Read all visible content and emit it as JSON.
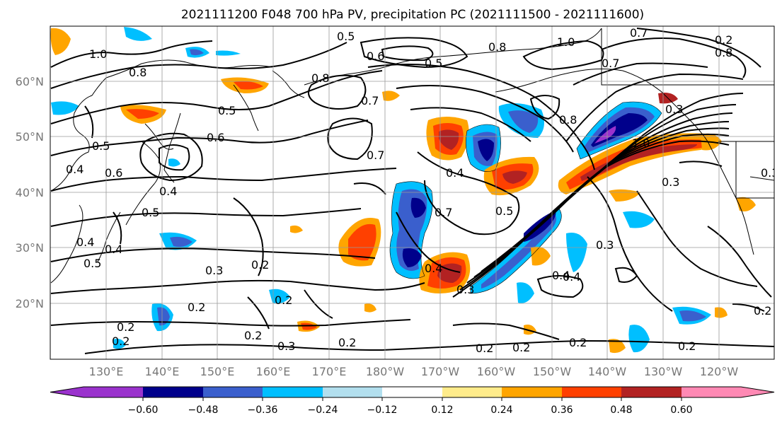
{
  "title": "2021111200 F048 700 hPa PV, precipitation PC (2021111500 - 2021111600)",
  "lat_ticks": [
    "60°N",
    "50°N",
    "40°N",
    "30°N",
    "20°N"
  ],
  "lon_ticks": [
    "130°E",
    "140°E",
    "150°E",
    "160°E",
    "170°E",
    "180°W",
    "170°W",
    "160°W",
    "150°W",
    "140°W",
    "130°W",
    "120°W"
  ],
  "colorbar": {
    "tick_labels": [
      "−0.60",
      "−0.48",
      "−0.36",
      "−0.24",
      "−0.12",
      "0.12",
      "0.24",
      "0.36",
      "0.48",
      "0.60"
    ],
    "colors": [
      "#9a32cd",
      "#00008b",
      "#3a5fcd",
      "#00bfff",
      "#b2dfee",
      "#ffffff",
      "#ffec8b",
      "#ffa500",
      "#ff4000",
      "#b22222",
      "#ff89b4"
    ]
  },
  "contour_labels": [
    "1.0",
    "0.5",
    "0.6",
    "0.8",
    "0.5",
    "1.0",
    "0.7",
    "0.7",
    "0.8",
    "0.8",
    "0.5",
    "0.6",
    "0.8",
    "0.5",
    "0.7",
    "0.8",
    "0.4",
    "0.6",
    "0.4",
    "0.5",
    "0.4",
    "0.5",
    "0.4",
    "0.4",
    "0.7",
    "0.4",
    "0.7",
    "0.5",
    "1.0",
    "0.3",
    "0.3",
    "0.2",
    "0.3",
    "0.2",
    "0.2",
    "0.2",
    "0.2",
    "0.2",
    "0.3",
    "0.2",
    "0.2",
    "0.2",
    "0.2",
    "0.3",
    "0.4",
    "0.3",
    "0.2",
    "0.3",
    "0.2",
    "0.4",
    "0.2"
  ]
}
